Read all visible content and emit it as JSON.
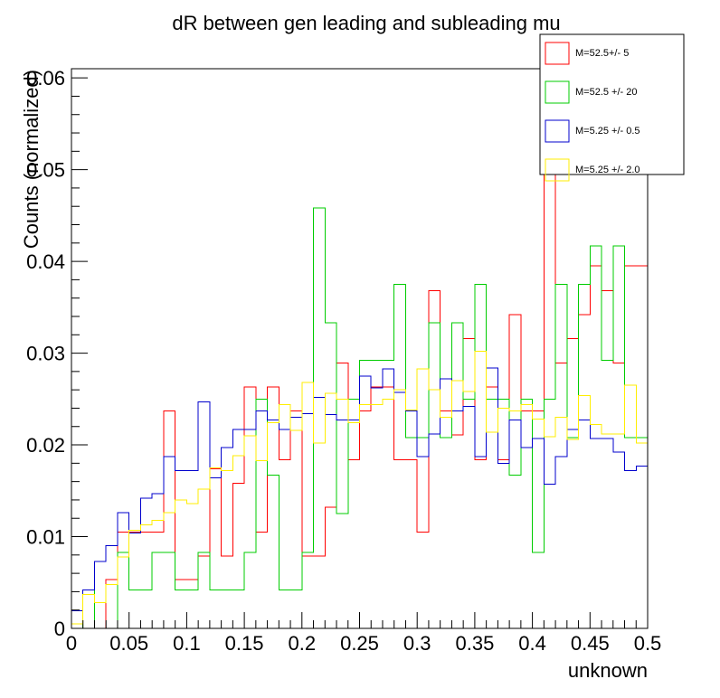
{
  "chart_data": {
    "type": "histogram",
    "title": "dR between gen leading and subleading mu",
    "xlabel": "unknown",
    "ylabel": "Counts (normalized)",
    "xlim": [
      0,
      0.5
    ],
    "ylim": [
      0,
      0.061
    ],
    "bin_width": 0.01,
    "x_ticks": [
      "0",
      "0.05",
      "0.1",
      "0.15",
      "0.2",
      "0.25",
      "0.3",
      "0.35",
      "0.4",
      "0.45",
      "0.5"
    ],
    "y_ticks": [
      "0",
      "0.01",
      "0.02",
      "0.03",
      "0.04",
      "0.05",
      "0.06"
    ],
    "x_tick_values": [
      0,
      0.05,
      0.1,
      0.15,
      0.2,
      0.25,
      0.3,
      0.35,
      0.4,
      0.45,
      0.5
    ],
    "y_tick_values": [
      0,
      0.01,
      0.02,
      0.03,
      0.04,
      0.05,
      0.06
    ],
    "legend_position": "top-right",
    "series": [
      {
        "name": "M=52.5+/- 5",
        "color": "#ff0000",
        "values": [
          0.0,
          0.0,
          0.0,
          0.0053,
          0.0105,
          0.0105,
          0.0105,
          0.0105,
          0.0237,
          0.0053,
          0.0053,
          0.0079,
          0.0174,
          0.0079,
          0.0158,
          0.0263,
          0.0105,
          0.0263,
          0.0184,
          0.0237,
          0.0079,
          0.0079,
          0.0132,
          0.0289,
          0.0184,
          0.0237,
          0.0263,
          0.0263,
          0.0184,
          0.0184,
          0.0105,
          0.0368,
          0.0237,
          0.0211,
          0.0316,
          0.0184,
          0.0263,
          0.0184,
          0.0342,
          0.0237,
          0.0237,
          0.05,
          0.0289,
          0.0316,
          0.0342,
          0.0395,
          0.0368,
          0.0289,
          0.0395,
          0.0395
        ]
      },
      {
        "name": "M=52.5 +/- 20",
        "color": "#00cc00",
        "values": [
          0.0,
          0.0042,
          0.0,
          0.0,
          0.0083,
          0.0042,
          0.0042,
          0.0083,
          0.0083,
          0.0042,
          0.0042,
          0.0083,
          0.0042,
          0.0042,
          0.0042,
          0.0083,
          0.025,
          0.0167,
          0.0042,
          0.0042,
          0.0083,
          0.0458,
          0.0333,
          0.0125,
          0.025,
          0.0292,
          0.0292,
          0.0292,
          0.0375,
          0.0208,
          0.0208,
          0.0333,
          0.0208,
          0.0333,
          0.025,
          0.0375,
          0.025,
          0.025,
          0.0167,
          0.025,
          0.0083,
          0.025,
          0.0375,
          0.0208,
          0.0375,
          0.0417,
          0.0292,
          0.0417,
          0.0208,
          0.0208
        ]
      },
      {
        "name": "M=5.25 +/- 0.5",
        "color": "#0000cc",
        "values": [
          0.0019,
          0.0042,
          0.0073,
          0.009,
          0.0126,
          0.0104,
          0.0142,
          0.0147,
          0.0187,
          0.0172,
          0.0172,
          0.0247,
          0.0164,
          0.0197,
          0.0217,
          0.0217,
          0.0237,
          0.0227,
          0.0217,
          0.023,
          0.0234,
          0.0252,
          0.0233,
          0.0227,
          0.0227,
          0.0275,
          0.0262,
          0.0283,
          0.0257,
          0.0237,
          0.0187,
          0.0212,
          0.0272,
          0.0237,
          0.0242,
          0.0187,
          0.0284,
          0.018,
          0.0227,
          0.0197,
          0.0207,
          0.0157,
          0.0187,
          0.0217,
          0.0227,
          0.0207,
          0.0207,
          0.0192,
          0.0172,
          0.0177
        ]
      },
      {
        "name": "M=5.25 +/- 2.0",
        "color": "#ffee00",
        "values": [
          0.0005,
          0.0037,
          0.0028,
          0.0048,
          0.0078,
          0.0107,
          0.0113,
          0.0118,
          0.0126,
          0.014,
          0.0136,
          0.0152,
          0.0175,
          0.0172,
          0.0188,
          0.021,
          0.0183,
          0.0224,
          0.0244,
          0.0216,
          0.0268,
          0.0202,
          0.0256,
          0.025,
          0.0224,
          0.0244,
          0.0244,
          0.025,
          0.026,
          0.0238,
          0.0283,
          0.026,
          0.023,
          0.027,
          0.0258,
          0.0302,
          0.0214,
          0.024,
          0.0237,
          0.0244,
          0.0228,
          0.0209,
          0.023,
          0.0206,
          0.0254,
          0.0222,
          0.0212,
          0.0212,
          0.0265,
          0.0202
        ]
      }
    ]
  }
}
